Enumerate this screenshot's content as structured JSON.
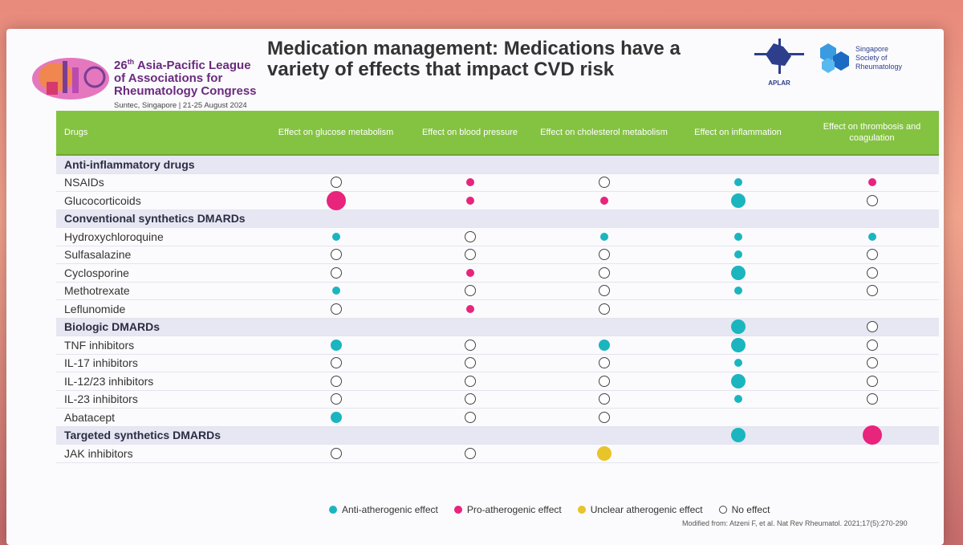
{
  "header": {
    "congress_number": "26",
    "congress_suffix": "th",
    "congress_line1": "Asia-Pacific League",
    "congress_line2": "of Associations for",
    "congress_line3": "Rheumatology Congress",
    "venue": "Suntec, Singapore  |  21-25 August 2024",
    "title": "Medication management: Medications have a variety of effects that impact CVD risk",
    "aplar_label": "APLAR",
    "ssr_line1": "Singapore",
    "ssr_line2": "Society of",
    "ssr_line3": "Rheumatology"
  },
  "table": {
    "columns": [
      "Drugs",
      "Effect on glucose metabolism",
      "Effect on blood pressure",
      "Effect on cholesterol metabolism",
      "Effect on inflammation",
      "Effect on thrombosis and coagulation"
    ],
    "rows": [
      {
        "drug": "Anti-inflammatory drugs",
        "group": true,
        "effects": [
          null,
          null,
          null,
          null,
          null
        ]
      },
      {
        "drug": "NSAIDs",
        "group": false,
        "effects": [
          "none-m",
          "pro-s",
          "none-m",
          "anti-s",
          "pro-s"
        ]
      },
      {
        "drug": "Glucocorticoids",
        "group": false,
        "effects": [
          "pro-xl",
          "pro-s",
          "pro-s",
          "anti-l",
          "none-m"
        ]
      },
      {
        "drug": "Conventional synthetics DMARDs",
        "group": true,
        "effects": [
          null,
          null,
          null,
          null,
          null
        ]
      },
      {
        "drug": "Hydroxychloroquine",
        "group": false,
        "effects": [
          "anti-s",
          "none-m",
          "anti-s",
          "anti-s",
          "anti-s"
        ]
      },
      {
        "drug": "Sulfasalazine",
        "group": false,
        "effects": [
          "none-m",
          "none-m",
          "none-m",
          "anti-s",
          "none-m"
        ]
      },
      {
        "drug": "Cyclosporine",
        "group": false,
        "effects": [
          "none-m",
          "pro-s",
          "none-m",
          "anti-l",
          "none-m"
        ]
      },
      {
        "drug": "Methotrexate",
        "group": false,
        "effects": [
          "anti-s",
          "none-m",
          "none-m",
          "anti-s",
          "none-m"
        ]
      },
      {
        "drug": "Leflunomide",
        "group": false,
        "effects": [
          "none-m",
          "pro-s",
          "none-m",
          null,
          null
        ]
      },
      {
        "drug": "Biologic DMARDs",
        "group": true,
        "effects": [
          null,
          null,
          null,
          "anti-l",
          "none-m"
        ]
      },
      {
        "drug": "TNF inhibitors",
        "group": false,
        "effects": [
          "anti-m",
          "none-m",
          "anti-m",
          "anti-l",
          "none-m"
        ]
      },
      {
        "drug": "IL-17 inhibitors",
        "group": false,
        "effects": [
          "none-m",
          "none-m",
          "none-m",
          "anti-s",
          "none-m"
        ]
      },
      {
        "drug": "IL-12/23 inhibitors",
        "group": false,
        "effects": [
          "none-m",
          "none-m",
          "none-m",
          "anti-l",
          "none-m"
        ]
      },
      {
        "drug": "IL-23 inhibitors",
        "group": false,
        "effects": [
          "none-m",
          "none-m",
          "none-m",
          "anti-s",
          "none-m"
        ]
      },
      {
        "drug": "Abatacept",
        "group": false,
        "effects": [
          "anti-m",
          "none-m",
          "none-m",
          null,
          null
        ]
      },
      {
        "drug": "Targeted synthetics DMARDs",
        "group": true,
        "effects": [
          null,
          null,
          null,
          "anti-l",
          "pro-xl"
        ]
      },
      {
        "drug": "JAK inhibitors",
        "group": false,
        "effects": [
          "none-m",
          "none-m",
          "unclear-l",
          null,
          null
        ]
      }
    ]
  },
  "legend": {
    "anti": "Anti-atherogenic effect",
    "pro": "Pro-atherogenic effect",
    "unclear": "Unclear atherogenic effect",
    "none": "No effect"
  },
  "source": "Modified from: Atzeni F, et al. Nat Rev Rheumatol. 2021;17(5):270-290",
  "colors": {
    "anti": "#1bb5bf",
    "pro": "#e8247c",
    "unclear": "#e8c32a",
    "header_green": "#84c341"
  }
}
